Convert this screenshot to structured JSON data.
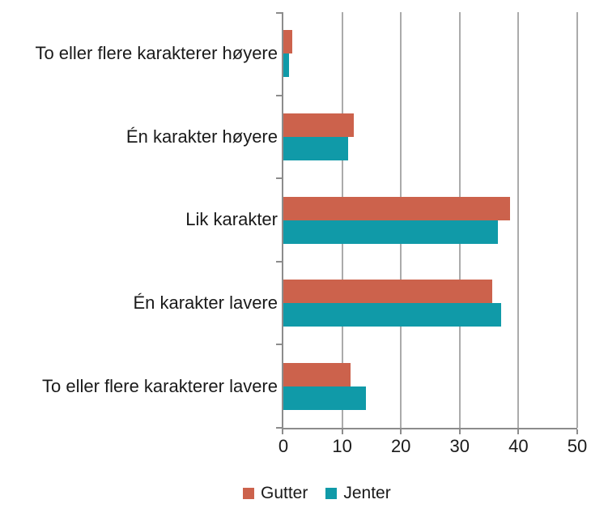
{
  "chart_data": {
    "type": "bar",
    "orientation": "horizontal",
    "title": "",
    "xlabel": "",
    "ylabel": "",
    "categories": [
      "To eller flere karakterer høyere",
      "Én karakter høyere",
      "Lik karakter",
      "Én karakter lavere",
      "To eller flere karakterer lavere"
    ],
    "series": [
      {
        "name": "Gutter",
        "color": "#CC624C",
        "values": [
          1.5,
          12,
          38.5,
          35.5,
          11.5
        ]
      },
      {
        "name": "Jenter",
        "color": "#109AA8",
        "values": [
          1,
          11,
          36.5,
          37,
          14
        ]
      }
    ],
    "x_axis": {
      "min": 0,
      "max": 50,
      "tick_step": 10,
      "tick_labels": [
        "0",
        "10",
        "20",
        "30",
        "40",
        "50"
      ]
    },
    "grid": true,
    "legend_position": "bottom",
    "colors": {
      "gridline": "#ABABAB",
      "axis": "#8C8C8C",
      "text": "#1A1A1A",
      "background": "#FFFFFF"
    }
  }
}
